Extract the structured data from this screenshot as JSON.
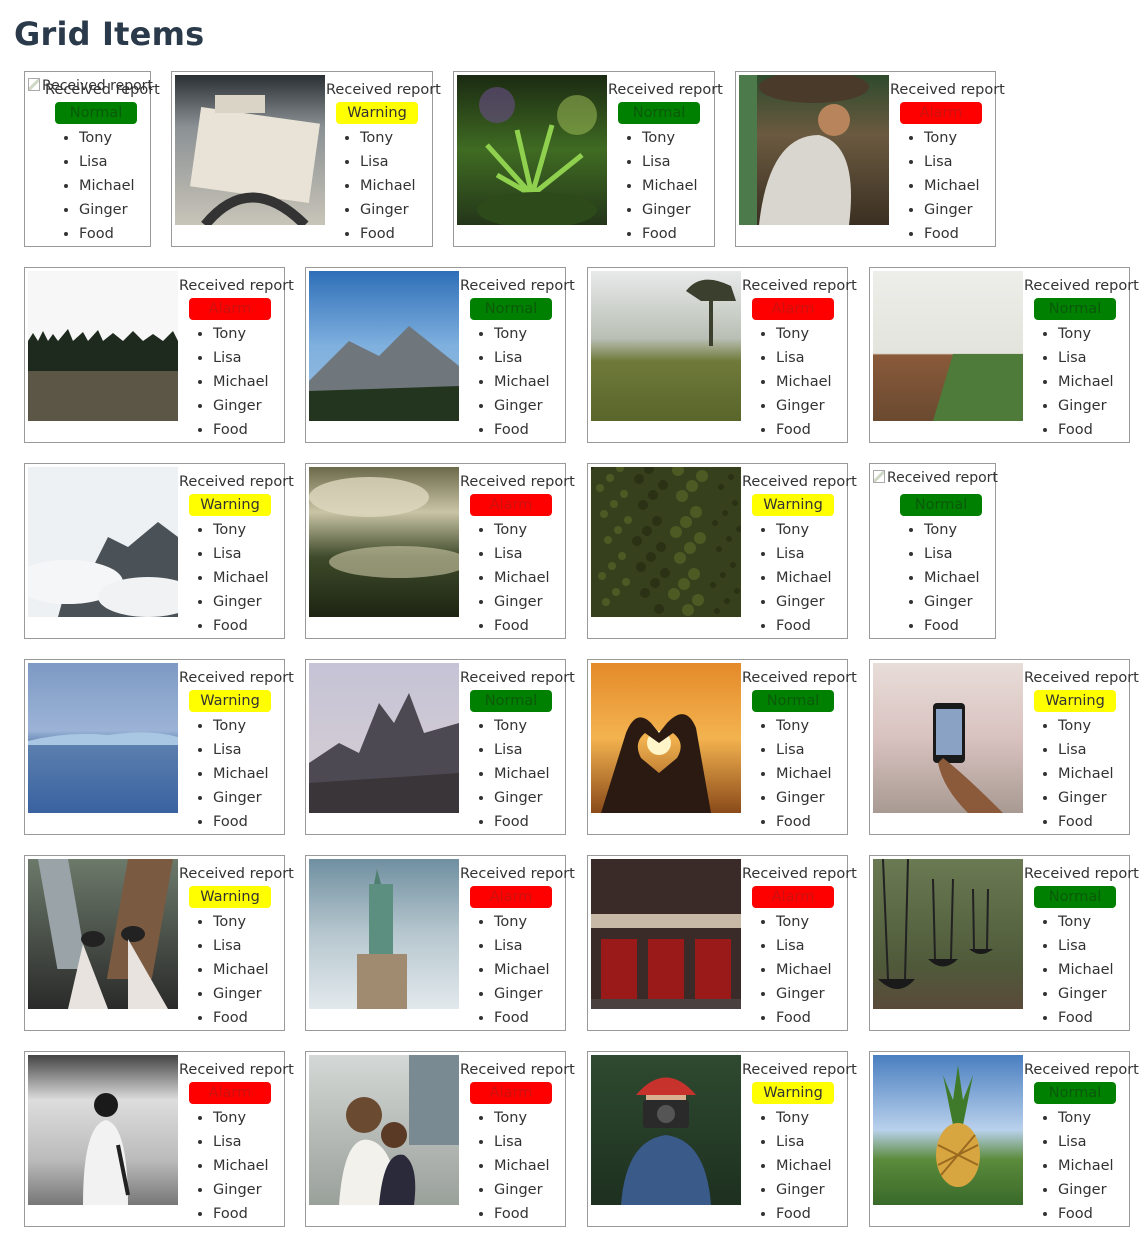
{
  "page": {
    "title": "Grid Items"
  },
  "colors": {
    "normal": "#008000",
    "warning": "#ffff00",
    "alarm": "#ff0000"
  },
  "cards": [
    {
      "image": "broken",
      "alt": "Received report",
      "report": "Received report",
      "status": "Normal",
      "names": [
        "Tony",
        "Lisa",
        "Michael",
        "Ginger",
        "Food"
      ]
    },
    {
      "image": "document-photo",
      "report": "Received report",
      "status": "Warning",
      "names": [
        "Tony",
        "Lisa",
        "Michael",
        "Ginger",
        "Food"
      ]
    },
    {
      "image": "plant-photo",
      "report": "Received report",
      "status": "Normal",
      "names": [
        "Tony",
        "Lisa",
        "Michael",
        "Ginger",
        "Food"
      ]
    },
    {
      "image": "person-car-photo",
      "report": "Received report",
      "status": "Alarm",
      "names": [
        "Tony",
        "Lisa",
        "Michael",
        "Ginger",
        "Food"
      ]
    },
    {
      "image": "forest-field-photo",
      "report": "Received report",
      "status": "Alarm",
      "names": [
        "Tony",
        "Lisa",
        "Michael",
        "Ginger",
        "Food"
      ]
    },
    {
      "image": "mountain-photo",
      "report": "Received report",
      "status": "Normal",
      "names": [
        "Tony",
        "Lisa",
        "Michael",
        "Ginger",
        "Food"
      ]
    },
    {
      "image": "foggy-hill-photo",
      "report": "Received report",
      "status": "Alarm",
      "names": [
        "Tony",
        "Lisa",
        "Michael",
        "Ginger",
        "Food"
      ]
    },
    {
      "image": "farmland-photo",
      "report": "Received report",
      "status": "Normal",
      "names": [
        "Tony",
        "Lisa",
        "Michael",
        "Ginger",
        "Food"
      ]
    },
    {
      "image": "cloudy-cliffs-photo",
      "report": "Received report",
      "status": "Warning",
      "names": [
        "Tony",
        "Lisa",
        "Michael",
        "Ginger",
        "Food"
      ]
    },
    {
      "image": "misty-valley-photo",
      "report": "Received report",
      "status": "Alarm",
      "names": [
        "Tony",
        "Lisa",
        "Michael",
        "Ginger",
        "Food"
      ]
    },
    {
      "image": "moss-texture-photo",
      "report": "Received report",
      "status": "Warning",
      "names": [
        "Tony",
        "Lisa",
        "Michael",
        "Ginger",
        "Food"
      ]
    },
    {
      "image": "broken",
      "alt": "Received report",
      "report": "",
      "status": "Normal",
      "names": [
        "Tony",
        "Lisa",
        "Michael",
        "Ginger",
        "Food"
      ]
    },
    {
      "image": "blue-lake-photo",
      "report": "Received report",
      "status": "Warning",
      "names": [
        "Tony",
        "Lisa",
        "Michael",
        "Ginger",
        "Food"
      ]
    },
    {
      "image": "rocky-peaks-photo",
      "report": "Received report",
      "status": "Normal",
      "names": [
        "Tony",
        "Lisa",
        "Michael",
        "Ginger",
        "Food"
      ]
    },
    {
      "image": "heart-sunset-photo",
      "report": "Received report",
      "status": "Normal",
      "names": [
        "Tony",
        "Lisa",
        "Michael",
        "Ginger",
        "Food"
      ]
    },
    {
      "image": "phone-beach-photo",
      "report": "Received report",
      "status": "Warning",
      "names": [
        "Tony",
        "Lisa",
        "Michael",
        "Ginger",
        "Food"
      ]
    },
    {
      "image": "city-feet-photo",
      "report": "Received report",
      "status": "Warning",
      "names": [
        "Tony",
        "Lisa",
        "Michael",
        "Ginger",
        "Food"
      ]
    },
    {
      "image": "statue-liberty-photo",
      "report": "Received report",
      "status": "Alarm",
      "names": [
        "Tony",
        "Lisa",
        "Michael",
        "Ginger",
        "Food"
      ]
    },
    {
      "image": "music-hall-photo",
      "report": "Received report",
      "status": "Alarm",
      "names": [
        "Tony",
        "Lisa",
        "Michael",
        "Ginger",
        "Food"
      ]
    },
    {
      "image": "swings-photo",
      "report": "Received report",
      "status": "Normal",
      "names": [
        "Tony",
        "Lisa",
        "Michael",
        "Ginger",
        "Food"
      ]
    },
    {
      "image": "subway-woman-photo",
      "report": "Received report",
      "status": "Alarm",
      "names": [
        "Tony",
        "Lisa",
        "Michael",
        "Ginger",
        "Food"
      ]
    },
    {
      "image": "mother-child-photo",
      "report": "Received report",
      "status": "Alarm",
      "names": [
        "Tony",
        "Lisa",
        "Michael",
        "Ginger",
        "Food"
      ]
    },
    {
      "image": "camera-girl-photo",
      "report": "Received report",
      "status": "Warning",
      "names": [
        "Tony",
        "Lisa",
        "Michael",
        "Ginger",
        "Food"
      ]
    },
    {
      "image": "pineapple-photo",
      "report": "Received report",
      "status": "Normal",
      "names": [
        "Tony",
        "Lisa",
        "Michael",
        "Ginger",
        "Food"
      ]
    }
  ]
}
